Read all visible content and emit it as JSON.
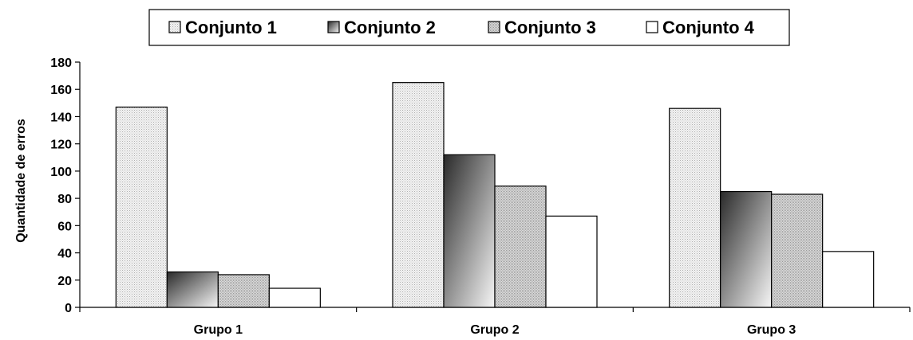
{
  "chart_data": {
    "type": "bar",
    "title": "",
    "xlabel": "",
    "ylabel": "Quantidade de erros",
    "ylim": [
      0,
      180
    ],
    "yticks": [
      0,
      20,
      40,
      60,
      80,
      100,
      120,
      140,
      160,
      180
    ],
    "grid": false,
    "legend_position": "top",
    "categories": [
      "Grupo 1",
      "Grupo 2",
      "Grupo 3"
    ],
    "series": [
      {
        "name": "Conjunto 1",
        "values": [
          147,
          165,
          146
        ],
        "fill": "dotted-light",
        "color": "#e6e6e6"
      },
      {
        "name": "Conjunto 2",
        "values": [
          26,
          112,
          85
        ],
        "fill": "gradient-dark",
        "color": "#333333"
      },
      {
        "name": "Conjunto 3",
        "values": [
          24,
          89,
          83
        ],
        "fill": "dotted-gray",
        "color": "#cccccc"
      },
      {
        "name": "Conjunto 4",
        "values": [
          14,
          67,
          41
        ],
        "fill": "white",
        "color": "#ffffff"
      }
    ]
  }
}
